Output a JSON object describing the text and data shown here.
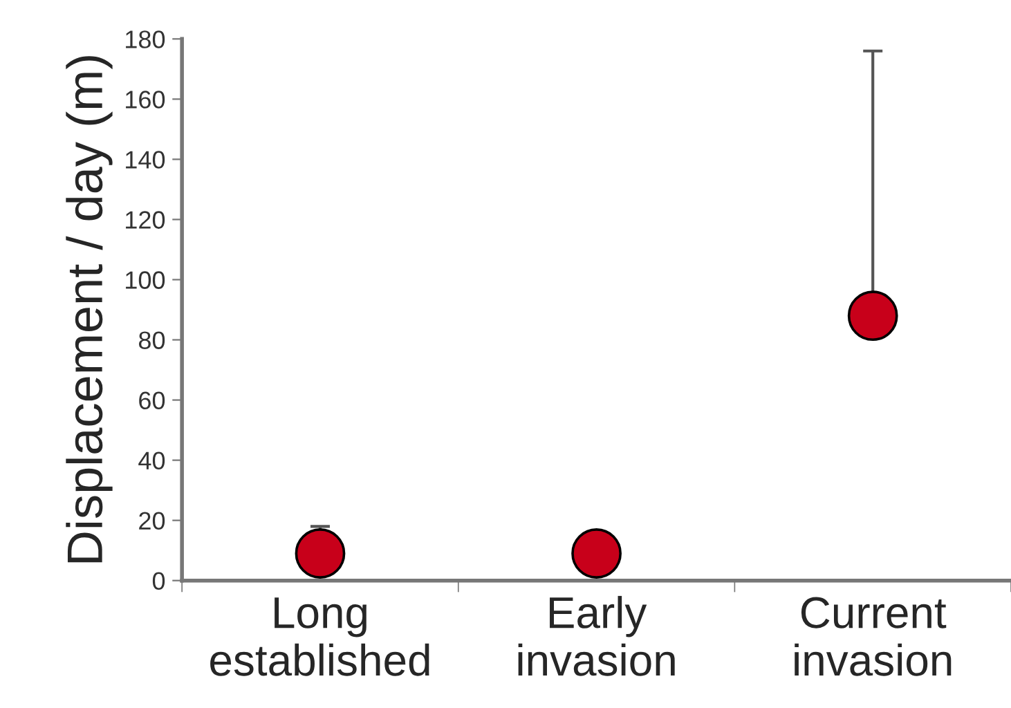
{
  "chart_data": {
    "type": "scatter",
    "ylabel": "Displacement / day (m)",
    "categories": [
      "Long\nestablished",
      "Early\ninvasion",
      "Current\ninvasion"
    ],
    "series": [
      {
        "color": "#c8001a",
        "values": [
          9,
          9,
          88
        ],
        "errors": [
          [
            9,
            18
          ],
          null,
          [
            88,
            176
          ]
        ]
      }
    ],
    "ylim": [
      0,
      180
    ],
    "yticks": [
      0,
      20,
      40,
      60,
      80,
      100,
      120,
      140,
      160,
      180
    ],
    "marker": "circle",
    "grid": false,
    "legend": false
  }
}
